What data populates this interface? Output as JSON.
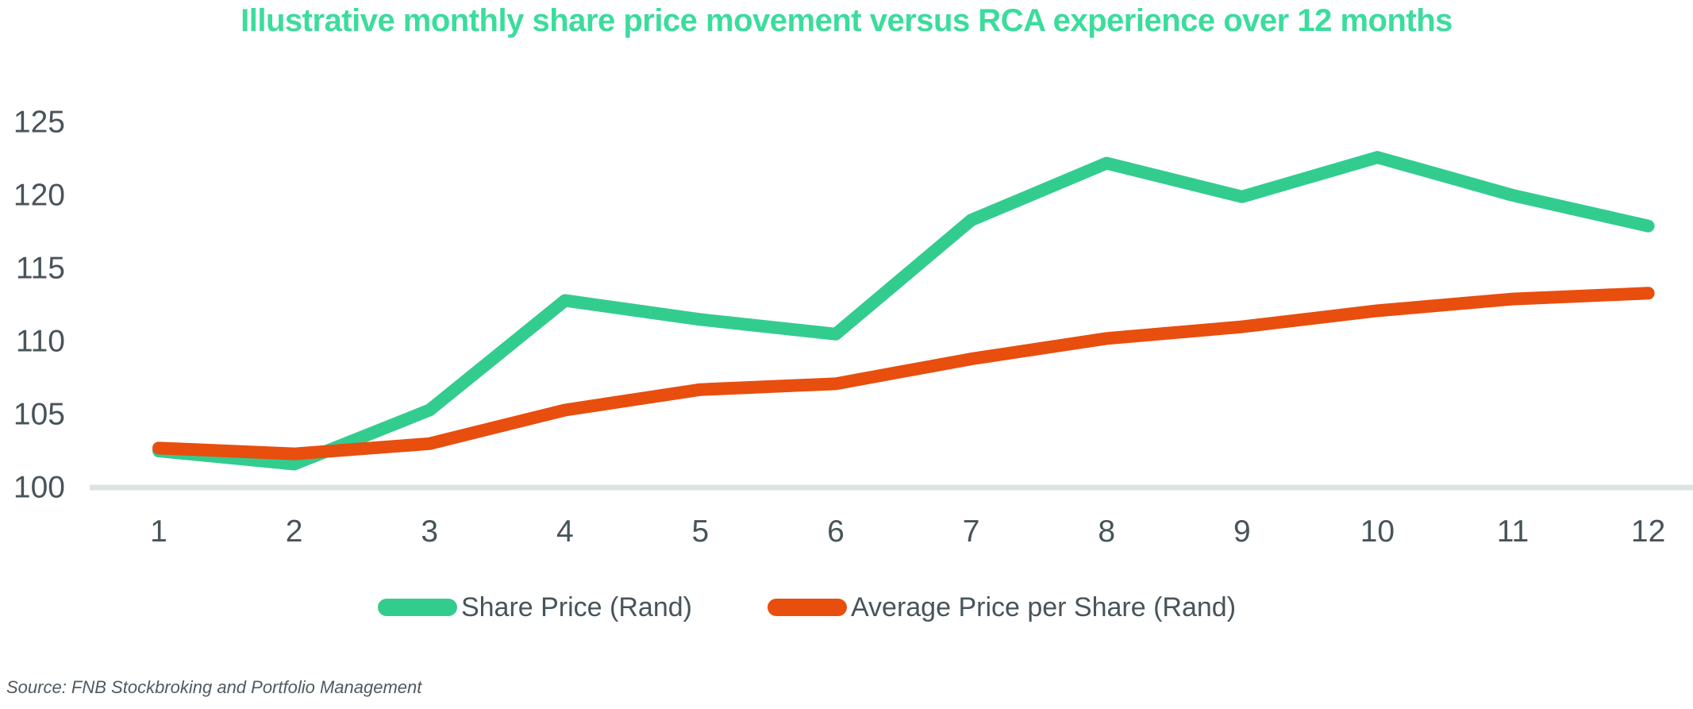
{
  "chart_data": {
    "type": "line",
    "title": "Illustrative monthly share price movement versus RCA experience over 12 months",
    "x": [
      1,
      2,
      3,
      4,
      5,
      6,
      7,
      8,
      9,
      10,
      11,
      12
    ],
    "series": [
      {
        "name": "Share Price (Rand)",
        "color": "#33cc8f",
        "values": [
          102.5,
          101.6,
          105.3,
          112.8,
          111.5,
          110.5,
          118.3,
          122.2,
          119.9,
          122.6,
          120.0,
          117.9
        ]
      },
      {
        "name": "Average Price per Share (Rand)",
        "color": "#e84e0e",
        "values": [
          102.7,
          102.3,
          103.0,
          105.3,
          106.7,
          107.1,
          108.8,
          110.2,
          111.0,
          112.1,
          112.9,
          113.3
        ]
      }
    ],
    "xlabel": "",
    "ylabel": "",
    "xlim": [
      1,
      12
    ],
    "ylim": [
      100,
      125
    ],
    "yticks": [
      100,
      105,
      110,
      115,
      120,
      125
    ],
    "grid": false,
    "legend_position": "bottom-center"
  },
  "colors": {
    "title": "#3bdc9c",
    "axis_label": "#47545a",
    "axis_line": "#dce3e3",
    "legend_text": "#47545a",
    "source_text": "#4e5a60"
  },
  "source_note": "Source: FNB Stockbroking and Portfolio Management"
}
